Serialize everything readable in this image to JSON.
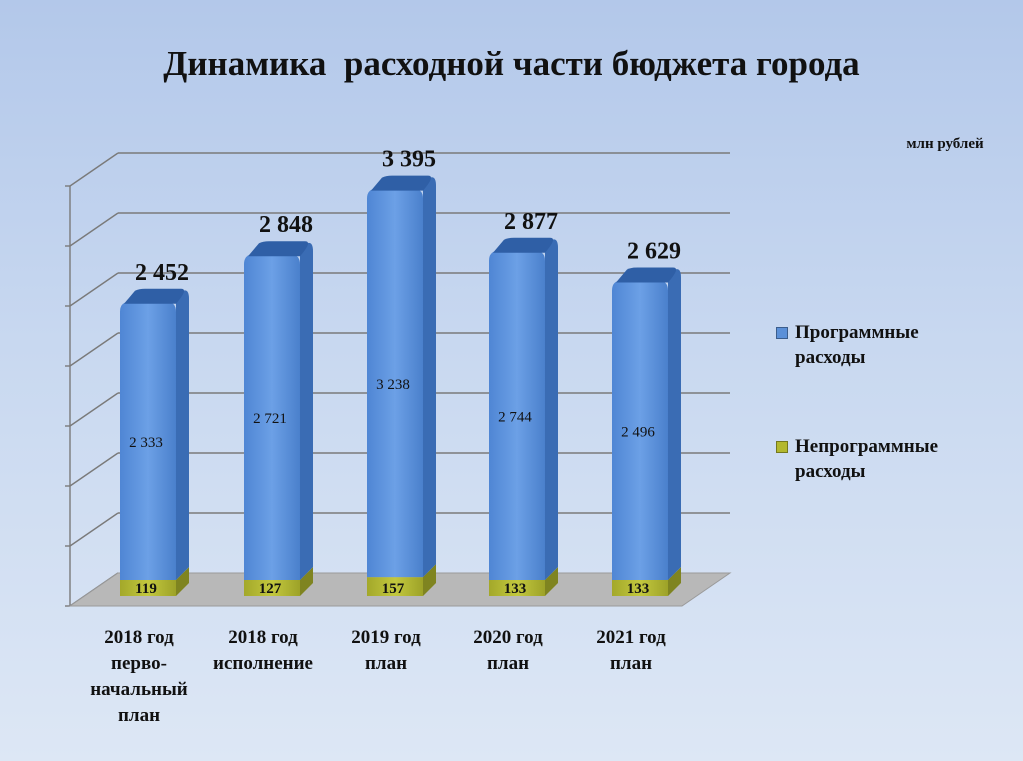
{
  "chart_data": {
    "type": "bar",
    "stacked": true,
    "three_d": true,
    "title": "Динамика  расходной части бюджета города",
    "unit": "млн рублей",
    "categories": [
      [
        "2018 год",
        "перво-",
        "начальный",
        "план"
      ],
      [
        "2018 год",
        "исполнение"
      ],
      [
        "2019 год",
        "план"
      ],
      [
        "2020 год",
        "план"
      ],
      [
        "2021 год",
        "план"
      ]
    ],
    "series": [
      {
        "name": "Непрограммные расходы",
        "legend_lines": [
          "Непрограммные",
          "расходы"
        ],
        "color": "#b3b82e",
        "values": [
          119,
          127,
          157,
          133,
          133
        ],
        "value_labels": [
          "119",
          "127",
          "157",
          "133",
          "133"
        ]
      },
      {
        "name": "Программные расходы",
        "legend_lines": [
          "Программные",
          "расходы"
        ],
        "color": "#5b90d8",
        "values": [
          2333,
          2721,
          3238,
          2744,
          2496
        ],
        "value_labels": [
          "2 333",
          "2 721",
          "3 238",
          "2 744",
          "2 496"
        ]
      }
    ],
    "totals": [
      2452,
      2848,
      3395,
      2877,
      2629
    ],
    "total_labels": [
      "2 452",
      "2 848",
      "3 395",
      "2 877",
      "2 629"
    ],
    "ylim": [
      0,
      3500
    ],
    "grid": true,
    "legend": "right"
  }
}
